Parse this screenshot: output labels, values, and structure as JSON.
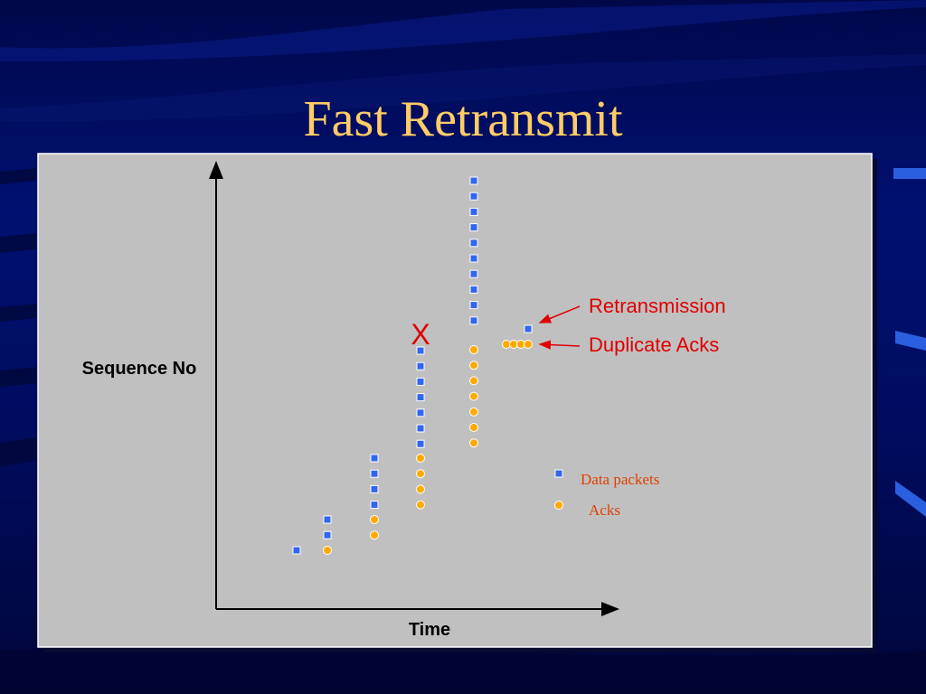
{
  "slide": {
    "title": "Fast Retransmit"
  },
  "diagram": {
    "y_axis_label": "Sequence No",
    "x_axis_label": "Time",
    "loss_marker": "X",
    "annotations": {
      "retransmission": "Retransmission",
      "duplicate_acks": "Duplicate Acks"
    },
    "legend": {
      "data_packets": "Data packets",
      "acks": "Acks"
    },
    "colors": {
      "background_top": "#00084a",
      "title": "#ffcc66",
      "panel": "#c0c0c0",
      "data_packet": "#3366ee",
      "ack": "#ffaa00",
      "annotation": "#e00000",
      "legend_text": "#e04000"
    }
  }
}
